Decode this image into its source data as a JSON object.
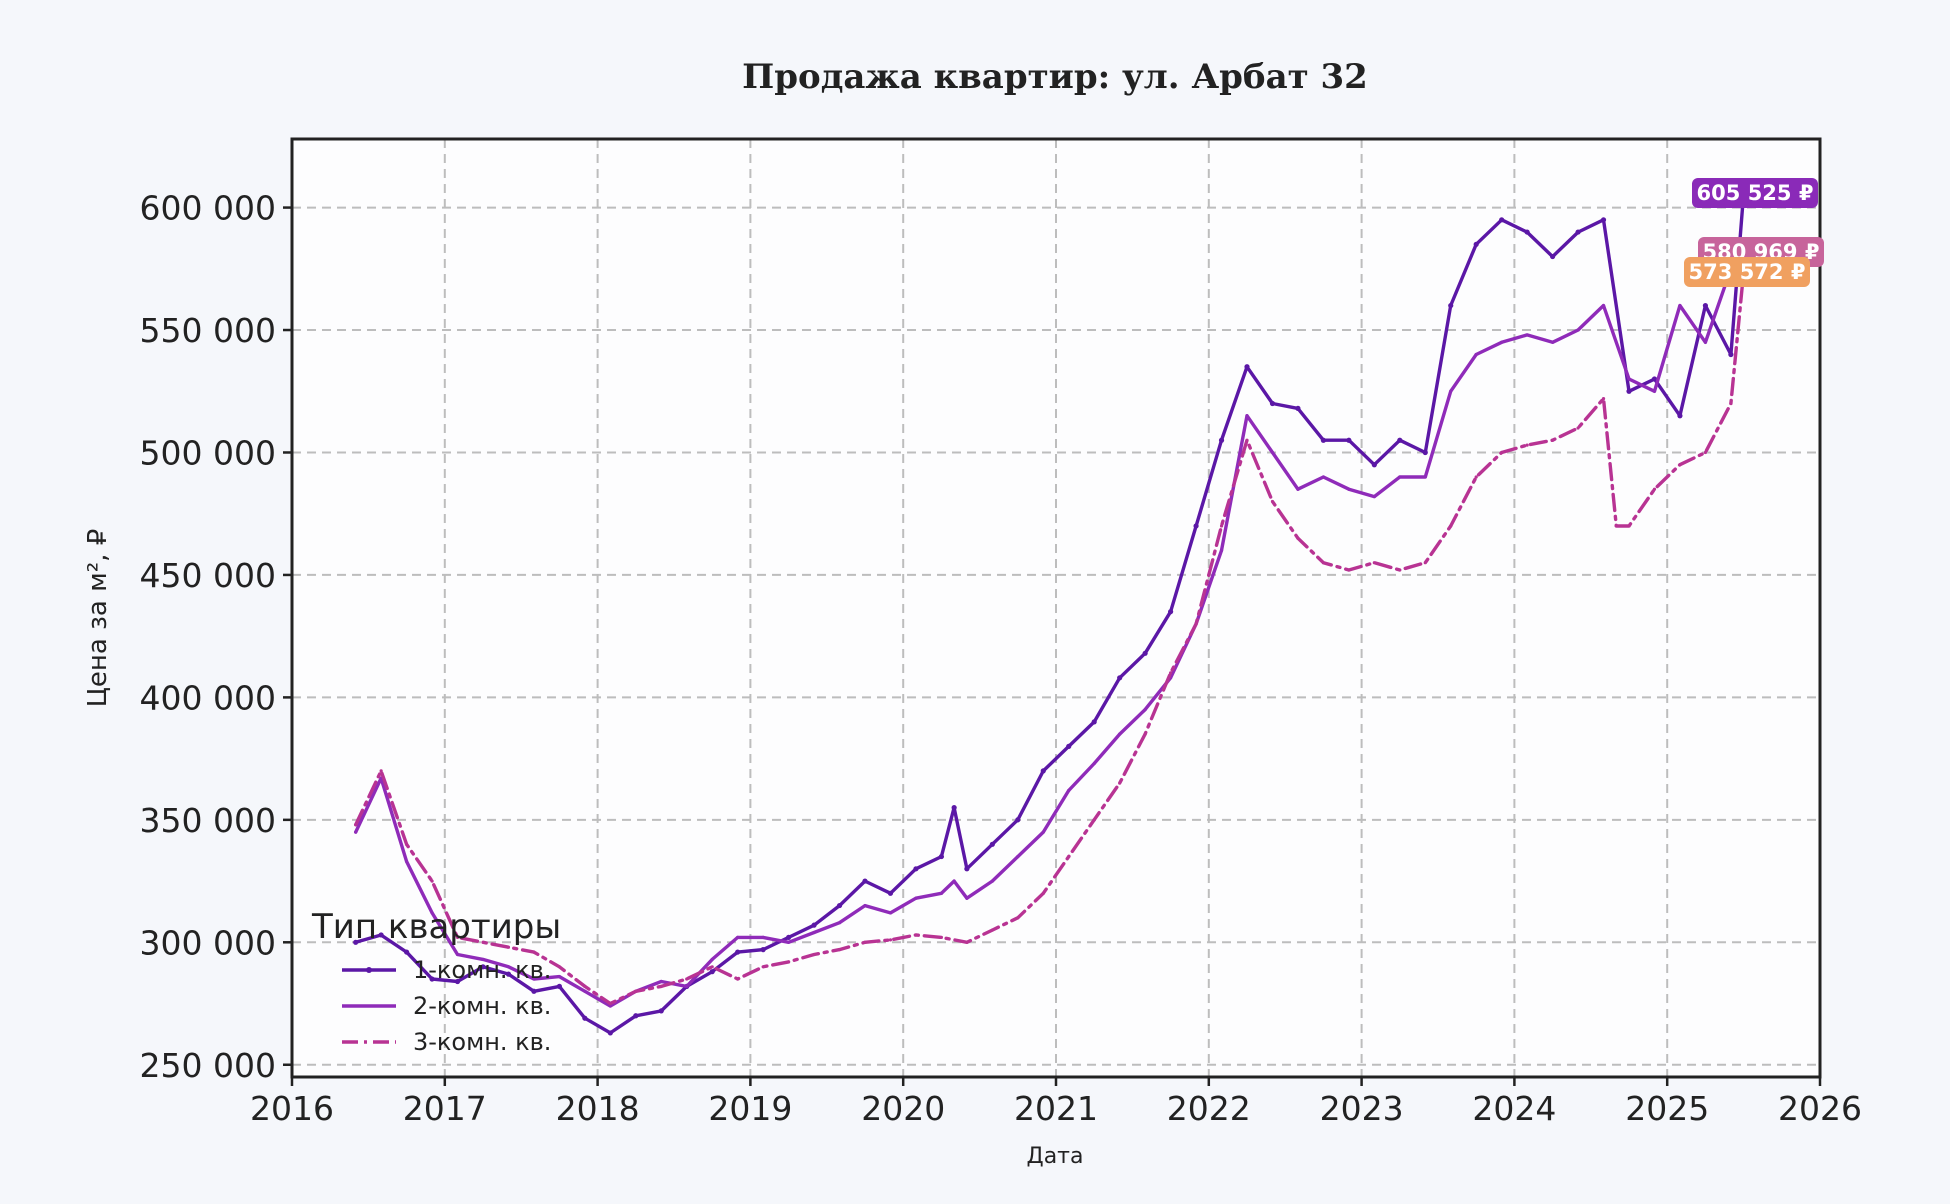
{
  "chart_data": {
    "type": "line",
    "title": "Продажа квартир: ул. Арбат 32",
    "xlabel": "Дата",
    "ylabel": "Цена за м², ₽",
    "xlim": [
      "2016-01-01",
      "2026-01-01"
    ],
    "ylim": [
      245000,
      628000
    ],
    "x_ticks": [
      "2016",
      "2017",
      "2018",
      "2019",
      "2020",
      "2021",
      "2022",
      "2023",
      "2024",
      "2025",
      "2026"
    ],
    "y_ticks": [
      250000,
      300000,
      350000,
      400000,
      450000,
      500000,
      550000,
      600000
    ],
    "y_tick_labels": [
      "250 000",
      "300 000",
      "350 000",
      "400 000",
      "450 000",
      "500 000",
      "550 000",
      "600 000"
    ],
    "grid": true,
    "legend": {
      "title": "Тип квартиры",
      "placement": "lower-left"
    },
    "series": [
      {
        "name": "1-комн. кв.",
        "color": "#5b17a6",
        "style": "solid-marker",
        "x": [
          "2016-06",
          "2016-08",
          "2016-10",
          "2016-12",
          "2017-02",
          "2017-04",
          "2017-06",
          "2017-08",
          "2017-10",
          "2017-12",
          "2018-02",
          "2018-04",
          "2018-06",
          "2018-08",
          "2018-10",
          "2018-12",
          "2019-02",
          "2019-04",
          "2019-06",
          "2019-08",
          "2019-10",
          "2019-12",
          "2020-02",
          "2020-04",
          "2020-05",
          "2020-06",
          "2020-08",
          "2020-10",
          "2020-12",
          "2021-02",
          "2021-04",
          "2021-06",
          "2021-08",
          "2021-10",
          "2021-12",
          "2022-02",
          "2022-04",
          "2022-06",
          "2022-08",
          "2022-10",
          "2022-12",
          "2023-02",
          "2023-04",
          "2023-06",
          "2023-08",
          "2023-10",
          "2023-12",
          "2024-02",
          "2024-04",
          "2024-06",
          "2024-08",
          "2024-10",
          "2024-12",
          "2025-02",
          "2025-04",
          "2025-06",
          "2025-07"
        ],
        "values": [
          300000,
          303000,
          296000,
          285000,
          284000,
          290000,
          287000,
          280000,
          282000,
          269000,
          263000,
          270000,
          272000,
          282000,
          288000,
          296000,
          297000,
          302000,
          307000,
          315000,
          325000,
          320000,
          330000,
          335000,
          355000,
          330000,
          340000,
          350000,
          370000,
          380000,
          390000,
          408000,
          418000,
          435000,
          470000,
          505000,
          535000,
          520000,
          518000,
          505000,
          505000,
          495000,
          505000,
          500000,
          560000,
          585000,
          595000,
          590000,
          580000,
          590000,
          595000,
          525000,
          530000,
          515000,
          560000,
          540000,
          605525
        ]
      },
      {
        "name": "2-комн. кв.",
        "color": "#8f2bb9",
        "style": "solid",
        "x": [
          "2016-06",
          "2016-08",
          "2016-10",
          "2016-12",
          "2017-02",
          "2017-04",
          "2017-06",
          "2017-08",
          "2017-10",
          "2017-12",
          "2018-02",
          "2018-04",
          "2018-06",
          "2018-08",
          "2018-10",
          "2018-12",
          "2019-02",
          "2019-04",
          "2019-06",
          "2019-08",
          "2019-10",
          "2019-12",
          "2020-02",
          "2020-04",
          "2020-05",
          "2020-06",
          "2020-08",
          "2020-10",
          "2020-12",
          "2021-02",
          "2021-04",
          "2021-06",
          "2021-08",
          "2021-10",
          "2021-12",
          "2022-02",
          "2022-04",
          "2022-06",
          "2022-08",
          "2022-10",
          "2022-12",
          "2023-02",
          "2023-04",
          "2023-06",
          "2023-08",
          "2023-10",
          "2023-12",
          "2024-02",
          "2024-04",
          "2024-06",
          "2024-08",
          "2024-10",
          "2024-12",
          "2025-02",
          "2025-04",
          "2025-06",
          "2025-07"
        ],
        "values": [
          345000,
          367000,
          333000,
          312000,
          295000,
          293000,
          290000,
          285000,
          286000,
          280000,
          274000,
          280000,
          284000,
          282000,
          293000,
          302000,
          302000,
          300000,
          304000,
          308000,
          315000,
          312000,
          318000,
          320000,
          325000,
          318000,
          325000,
          335000,
          345000,
          362000,
          373000,
          385000,
          395000,
          408000,
          430000,
          460000,
          515000,
          500000,
          485000,
          490000,
          485000,
          482000,
          490000,
          490000,
          525000,
          540000,
          545000,
          548000,
          545000,
          550000,
          560000,
          530000,
          525000,
          560000,
          545000,
          575000,
          580969
        ]
      },
      {
        "name": "3-комн. кв.",
        "color": "#b83393",
        "style": "dashdot",
        "x": [
          "2016-06",
          "2016-08",
          "2016-10",
          "2016-12",
          "2017-02",
          "2017-04",
          "2017-06",
          "2017-08",
          "2017-10",
          "2017-12",
          "2018-02",
          "2018-04",
          "2018-06",
          "2018-08",
          "2018-10",
          "2018-12",
          "2019-02",
          "2019-04",
          "2019-06",
          "2019-08",
          "2019-10",
          "2019-12",
          "2020-02",
          "2020-04",
          "2020-06",
          "2020-08",
          "2020-10",
          "2020-12",
          "2021-02",
          "2021-04",
          "2021-06",
          "2021-08",
          "2021-10",
          "2021-12",
          "2022-02",
          "2022-04",
          "2022-06",
          "2022-08",
          "2022-10",
          "2022-12",
          "2023-02",
          "2023-04",
          "2023-06",
          "2023-08",
          "2023-10",
          "2023-12",
          "2024-02",
          "2024-04",
          "2024-06",
          "2024-08",
          "2024-09",
          "2024-10",
          "2024-12",
          "2025-02",
          "2025-04",
          "2025-06",
          "2025-07"
        ],
        "values": [
          348000,
          370000,
          340000,
          325000,
          302000,
          300000,
          298000,
          296000,
          290000,
          282000,
          275000,
          280000,
          282000,
          285000,
          290000,
          285000,
          290000,
          292000,
          295000,
          297000,
          300000,
          301000,
          303000,
          302000,
          300000,
          305000,
          310000,
          320000,
          335000,
          350000,
          365000,
          385000,
          410000,
          430000,
          470000,
          505000,
          480000,
          465000,
          455000,
          452000,
          455000,
          452000,
          455000,
          470000,
          490000,
          500000,
          503000,
          505000,
          510000,
          522000,
          470000,
          470000,
          485000,
          495000,
          500000,
          520000,
          573572
        ]
      }
    ],
    "end_labels": [
      {
        "series": "1-комн. кв.",
        "text": "605 525 ₽",
        "color": "#8a2ab8"
      },
      {
        "series": "2-комн. кв.",
        "text": "580 969 ₽",
        "color": "#c7649b"
      },
      {
        "series": "3-комн. кв.",
        "text": "573 572 ₽",
        "color": "#f0a060"
      }
    ]
  }
}
